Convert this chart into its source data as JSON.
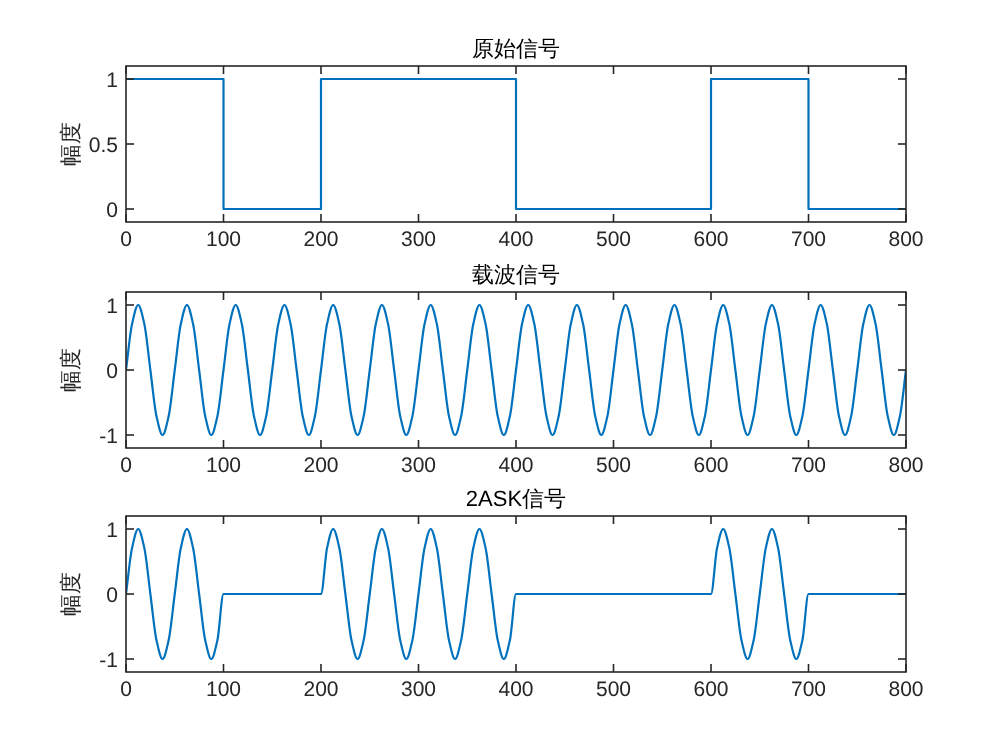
{
  "chart_data": [
    {
      "type": "step",
      "title": "原始信号",
      "ylabel": "幅度",
      "color": "#0072bd",
      "xlim": [
        0,
        800
      ],
      "xticks": [
        0,
        100,
        200,
        300,
        400,
        500,
        600,
        700,
        800
      ],
      "ylim": [
        -0.1,
        1.1
      ],
      "yticks": [
        0,
        0.5,
        1
      ],
      "x": [
        0,
        100,
        200,
        400,
        600,
        700,
        800
      ],
      "values": [
        1,
        0,
        1,
        0,
        1,
        0,
        0
      ]
    },
    {
      "type": "line",
      "title": "载波信号",
      "ylabel": "幅度",
      "color": "#0072bd",
      "xlim": [
        0,
        800
      ],
      "xticks": [
        0,
        100,
        200,
        300,
        400,
        500,
        600,
        700,
        800
      ],
      "ylim": [
        -1.2,
        1.2
      ],
      "yticks": [
        -1,
        0,
        1
      ],
      "x": [
        0,
        6.25,
        12.5,
        18.75,
        25,
        31.25,
        37.5,
        43.75,
        50,
        56.25,
        62.5,
        68.75,
        75,
        81.25,
        87.5,
        93.75,
        100,
        106.25,
        112.5,
        118.75,
        125,
        131.25,
        137.5,
        143.75,
        150,
        156.25,
        162.5,
        168.75,
        175,
        181.25,
        187.5,
        193.75,
        200,
        206.25,
        212.5,
        218.75,
        225,
        231.25,
        237.5,
        243.75,
        250,
        256.25,
        262.5,
        268.75,
        275,
        281.25,
        287.5,
        293.75,
        300,
        306.25,
        312.5,
        318.75,
        325,
        331.25,
        337.5,
        343.75,
        350,
        356.25,
        362.5,
        368.75,
        375,
        381.25,
        387.5,
        393.75,
        400,
        406.25,
        412.5,
        418.75,
        425,
        431.25,
        437.5,
        443.75,
        450,
        456.25,
        462.5,
        468.75,
        475,
        481.25,
        487.5,
        493.75,
        500,
        506.25,
        512.5,
        518.75,
        525,
        531.25,
        537.5,
        543.75,
        550,
        556.25,
        562.5,
        568.75,
        575,
        581.25,
        587.5,
        593.75,
        600,
        606.25,
        612.5,
        618.75,
        625,
        631.25,
        637.5,
        643.75,
        650,
        656.25,
        662.5,
        668.75,
        675,
        681.25,
        687.5,
        693.75,
        700,
        706.25,
        712.5,
        718.75,
        725,
        731.25,
        737.5,
        743.75,
        750,
        756.25,
        762.5,
        768.75,
        775,
        781.25,
        787.5,
        793.75,
        800
      ],
      "values": [
        0,
        0.71,
        1,
        0.71,
        0,
        -0.71,
        -1,
        -0.71,
        0,
        0.71,
        1,
        0.71,
        0,
        -0.71,
        -1,
        -0.71,
        0,
        0.71,
        1,
        0.71,
        0,
        -0.71,
        -1,
        -0.71,
        0,
        0.71,
        1,
        0.71,
        0,
        -0.71,
        -1,
        -0.71,
        0,
        0.71,
        1,
        0.71,
        0,
        -0.71,
        -1,
        -0.71,
        0,
        0.71,
        1,
        0.71,
        0,
        -0.71,
        -1,
        -0.71,
        0,
        0.71,
        1,
        0.71,
        0,
        -0.71,
        -1,
        -0.71,
        0,
        0.71,
        1,
        0.71,
        0,
        -0.71,
        -1,
        -0.71,
        0,
        0.71,
        1,
        0.71,
        0,
        -0.71,
        -1,
        -0.71,
        0,
        0.71,
        1,
        0.71,
        0,
        -0.71,
        -1,
        -0.71,
        0,
        0.71,
        1,
        0.71,
        0,
        -0.71,
        -1,
        -0.71,
        0,
        0.71,
        1,
        0.71,
        0,
        -0.71,
        -1,
        -0.71,
        0,
        0.71,
        1,
        0.71,
        0,
        -0.71,
        -1,
        -0.71,
        0,
        0.71,
        1,
        0.71,
        0,
        -0.71,
        -1,
        -0.71,
        0,
        0.71,
        1,
        0.71,
        0,
        -0.71,
        -1,
        -0.71,
        0,
        0.71,
        1,
        0.71,
        0,
        -0.71,
        -1,
        -0.71,
        0
      ]
    },
    {
      "type": "line",
      "title": "2ASK信号",
      "ylabel": "幅度",
      "color": "#0072bd",
      "xlim": [
        0,
        800
      ],
      "xticks": [
        0,
        100,
        200,
        300,
        400,
        500,
        600,
        700,
        800
      ],
      "ylim": [
        -1.2,
        1.2
      ],
      "yticks": [
        -1,
        0,
        1
      ],
      "x": [
        0,
        6.25,
        12.5,
        18.75,
        25,
        31.25,
        37.5,
        43.75,
        50,
        56.25,
        62.5,
        68.75,
        75,
        81.25,
        87.5,
        93.75,
        100,
        200,
        206.25,
        212.5,
        218.75,
        225,
        231.25,
        237.5,
        243.75,
        250,
        256.25,
        262.5,
        268.75,
        275,
        281.25,
        287.5,
        293.75,
        300,
        306.25,
        312.5,
        318.75,
        325,
        331.25,
        337.5,
        343.75,
        350,
        356.25,
        362.5,
        368.75,
        375,
        381.25,
        387.5,
        393.75,
        400,
        600,
        606.25,
        612.5,
        618.75,
        625,
        631.25,
        637.5,
        643.75,
        650,
        656.25,
        662.5,
        668.75,
        675,
        681.25,
        687.5,
        693.75,
        700,
        800
      ],
      "values": [
        0,
        0.71,
        1,
        0.71,
        0,
        -0.71,
        -1,
        -0.71,
        0,
        0.71,
        1,
        0.71,
        0,
        -0.71,
        -1,
        -0.71,
        0,
        0,
        0.71,
        1,
        0.71,
        0,
        -0.71,
        -1,
        -0.71,
        0,
        0.71,
        1,
        0.71,
        0,
        -0.71,
        -1,
        -0.71,
        0,
        0.71,
        1,
        0.71,
        0,
        -0.71,
        -1,
        -0.71,
        0,
        0.71,
        1,
        0.71,
        0,
        -0.71,
        -1,
        -0.71,
        0,
        0,
        0.71,
        1,
        0.71,
        0,
        -0.71,
        -1,
        -0.71,
        0,
        0.71,
        1,
        0.71,
        0,
        -0.71,
        -1,
        -0.71,
        0,
        0
      ]
    }
  ]
}
